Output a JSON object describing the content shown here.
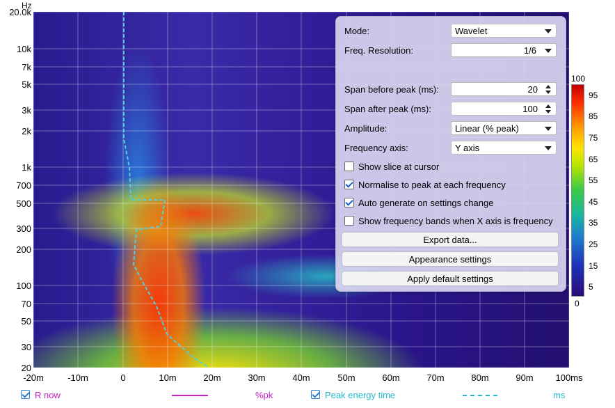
{
  "plot": {
    "y_unit": "Hz",
    "y_ticks": [
      "20.0k",
      "10k",
      "7k",
      "5k",
      "3k",
      "2k",
      "1k",
      "700",
      "500",
      "300",
      "200",
      "100",
      "70",
      "50",
      "30",
      "20"
    ],
    "x_ticks": [
      "-20m",
      "-10m",
      "0",
      "10m",
      "20m",
      "30m",
      "40m",
      "50m",
      "60m",
      "70m",
      "80m",
      "90m",
      "100ms"
    ],
    "peak_curve_color": "#4fd0e0"
  },
  "colorbar": {
    "ticks": [
      "100",
      "95",
      "85",
      "75",
      "65",
      "55",
      "45",
      "35",
      "25",
      "15",
      "5",
      "0"
    ]
  },
  "panel": {
    "mode_label": "Mode:",
    "mode_value": "Wavelet",
    "freq_res_label": "Freq. Resolution:",
    "freq_res_value": "1/6",
    "span_before_label": "Span before peak (ms):",
    "span_before_value": "20",
    "span_after_label": "Span after peak (ms):",
    "span_after_value": "100",
    "amplitude_label": "Amplitude:",
    "amplitude_value": "Linear (% peak)",
    "freq_axis_label": "Frequency axis:",
    "freq_axis_value": "Y axis",
    "show_slice_label": "Show slice at cursor",
    "show_slice_checked": false,
    "normalise_label": "Normalise to peak at each frequency",
    "normalise_checked": true,
    "autogen_label": "Auto generate on settings change",
    "autogen_checked": true,
    "show_bands_label": "Show frequency bands when X axis is frequency",
    "show_bands_checked": false,
    "export_button": "Export data...",
    "appearance_button": "Appearance settings",
    "defaults_button": "Apply default settings"
  },
  "legend": {
    "r_now_label": "R now",
    "r_now_unit": "%pk",
    "r_now_color": "#c020c0",
    "peak_label": "Peak energy time",
    "peak_unit": "ms",
    "peak_color": "#20b8c8"
  }
}
